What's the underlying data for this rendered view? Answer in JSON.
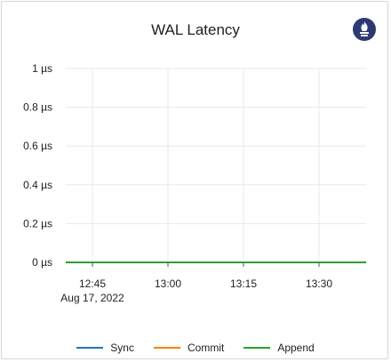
{
  "chart_data": {
    "type": "line",
    "title": "WAL Latency",
    "y_ticks": [
      "0 µs",
      "0.2 µs",
      "0.4 µs",
      "0.6 µs",
      "0.8 µs",
      "1 µs"
    ],
    "y_values": [
      0,
      0.2,
      0.4,
      0.6,
      0.8,
      1
    ],
    "ylim": [
      0,
      1
    ],
    "x_ticks": [
      "12:45",
      "13:00",
      "13:15",
      "13:30"
    ],
    "x_date_label": "Aug 17, 2022",
    "series": [
      {
        "name": "Sync",
        "color": "#1f77b4",
        "values": [
          0,
          0
        ]
      },
      {
        "name": "Commit",
        "color": "#ff7f0e",
        "values": [
          0,
          0
        ]
      },
      {
        "name": "Append",
        "color": "#2ca02c",
        "values": [
          0,
          0
        ]
      }
    ],
    "grid": true,
    "legend": "bottom"
  }
}
